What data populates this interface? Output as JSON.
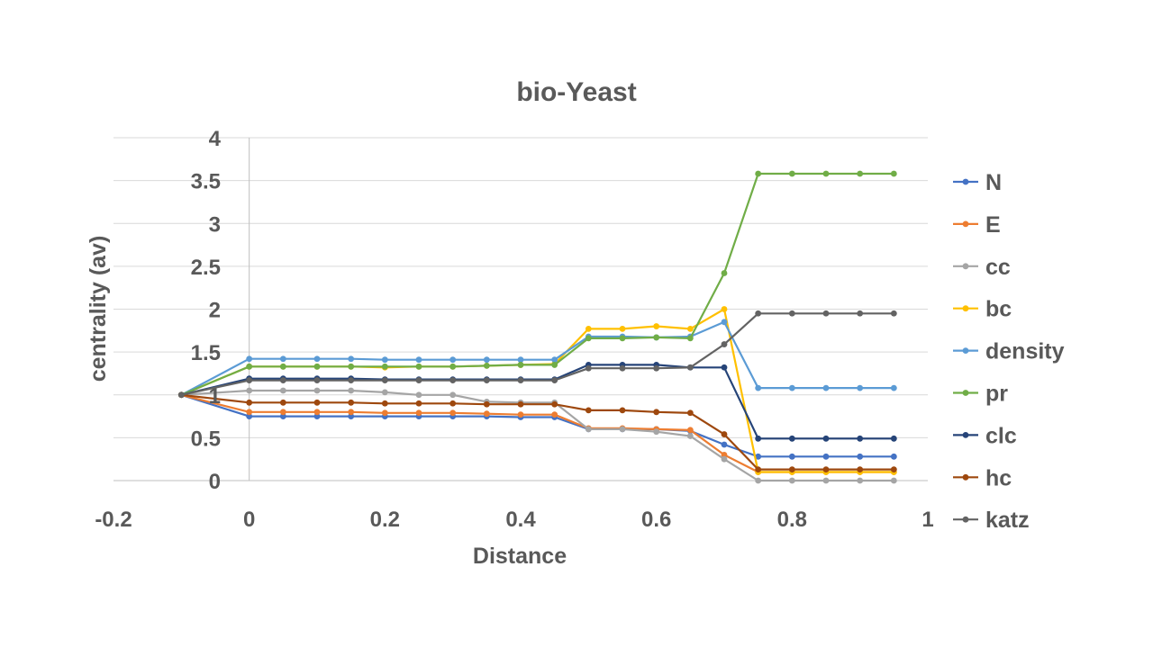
{
  "chart_data": {
    "type": "line",
    "title": "bio-Yeast",
    "xlabel": "Distance",
    "ylabel": "centrality (av)",
    "xlim": [
      -0.2,
      1
    ],
    "ylim": [
      0,
      4
    ],
    "xticks": [
      "-0.2",
      "0",
      "0.2",
      "0.4",
      "0.6",
      "0.8",
      "1"
    ],
    "yticks": [
      "0",
      "0.5",
      "1",
      "1.5",
      "2",
      "2.5",
      "3",
      "3.5",
      "4"
    ],
    "grid": "horizontal",
    "legend_position": "right",
    "x": [
      -0.1,
      0,
      0.05,
      0.1,
      0.15,
      0.2,
      0.25,
      0.3,
      0.35,
      0.4,
      0.45,
      0.5,
      0.55,
      0.6,
      0.65,
      0.7,
      0.75,
      0.8,
      0.85,
      0.9,
      0.95
    ],
    "series": [
      {
        "name": "N",
        "color": "#4472c4",
        "values": [
          1,
          0.75,
          0.75,
          0.75,
          0.75,
          0.75,
          0.75,
          0.75,
          0.75,
          0.74,
          0.74,
          0.6,
          0.6,
          0.6,
          0.58,
          0.42,
          0.28,
          0.28,
          0.28,
          0.28,
          0.28
        ]
      },
      {
        "name": "E",
        "color": "#ed7d31",
        "values": [
          1,
          0.8,
          0.8,
          0.8,
          0.8,
          0.79,
          0.79,
          0.79,
          0.78,
          0.77,
          0.77,
          0.61,
          0.61,
          0.6,
          0.59,
          0.3,
          0.1,
          0.1,
          0.1,
          0.1,
          0.1
        ]
      },
      {
        "name": "cc",
        "color": "#a5a5a5",
        "values": [
          1,
          1.05,
          1.05,
          1.05,
          1.05,
          1.03,
          1.0,
          1.0,
          0.92,
          0.91,
          0.91,
          0.6,
          0.6,
          0.57,
          0.52,
          0.25,
          0.0,
          0.0,
          0.0,
          0.0,
          0.0
        ]
      },
      {
        "name": "bc",
        "color": "#ffc000",
        "values": [
          1,
          1.33,
          1.33,
          1.33,
          1.33,
          1.32,
          1.33,
          1.33,
          1.34,
          1.35,
          1.36,
          1.77,
          1.77,
          1.8,
          1.77,
          2.0,
          0.1,
          0.1,
          0.1,
          0.1,
          0.1
        ]
      },
      {
        "name": "density",
        "color": "#5b9bd5",
        "values": [
          1,
          1.42,
          1.42,
          1.42,
          1.42,
          1.41,
          1.41,
          1.41,
          1.41,
          1.41,
          1.41,
          1.68,
          1.68,
          1.67,
          1.68,
          1.85,
          1.08,
          1.08,
          1.08,
          1.08,
          1.08
        ]
      },
      {
        "name": "pr",
        "color": "#70ad47",
        "values": [
          1,
          1.33,
          1.33,
          1.33,
          1.33,
          1.33,
          1.33,
          1.33,
          1.34,
          1.35,
          1.35,
          1.66,
          1.66,
          1.67,
          1.66,
          2.42,
          3.58,
          3.58,
          3.58,
          3.58,
          3.58
        ]
      },
      {
        "name": "clc",
        "color": "#264478",
        "values": [
          1,
          1.19,
          1.19,
          1.19,
          1.19,
          1.18,
          1.18,
          1.18,
          1.18,
          1.18,
          1.18,
          1.35,
          1.35,
          1.35,
          1.32,
          1.32,
          0.49,
          0.49,
          0.49,
          0.49,
          0.49
        ]
      },
      {
        "name": "hc",
        "color": "#9e480e",
        "values": [
          1,
          0.91,
          0.91,
          0.91,
          0.91,
          0.9,
          0.9,
          0.9,
          0.89,
          0.89,
          0.89,
          0.82,
          0.82,
          0.8,
          0.79,
          0.54,
          0.13,
          0.13,
          0.13,
          0.13,
          0.13
        ]
      },
      {
        "name": "katz",
        "color": "#636363",
        "values": [
          1,
          1.17,
          1.17,
          1.17,
          1.17,
          1.17,
          1.17,
          1.17,
          1.17,
          1.17,
          1.17,
          1.31,
          1.31,
          1.31,
          1.32,
          1.59,
          1.95,
          1.95,
          1.95,
          1.95,
          1.95
        ]
      }
    ]
  }
}
